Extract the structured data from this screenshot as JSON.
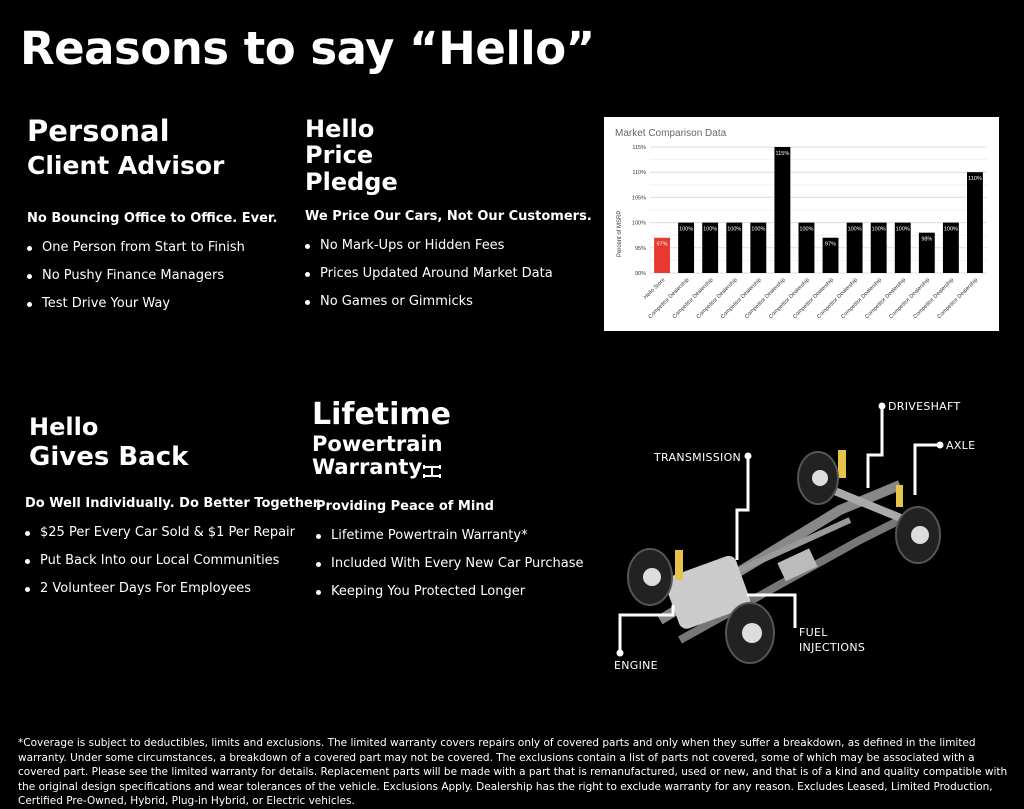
{
  "title": "Reasons to say “Hello”",
  "sections": [
    {
      "heading": [
        "Personal",
        "Client Advisor"
      ],
      "subheading": "No Bouncing Office to Office. Ever.",
      "bullets": [
        "One Person from Start to Finish",
        "No Pushy Finance Managers",
        "Test Drive Your Way"
      ]
    },
    {
      "heading": [
        "Hello",
        "Price",
        "Pledge"
      ],
      "subheading": "We Price Our Cars, Not Our Customers.",
      "bullets": [
        "No Mark-Ups or Hidden Fees",
        "Prices Updated Around Market Data",
        "No Games or Gimmicks"
      ]
    },
    {
      "heading": [
        "Hello",
        "Gives Back"
      ],
      "subheading": "Do Well Individually. Do Better Together.",
      "bullets": [
        "$25 Per Every Car Sold & $1 Per Repair",
        "Put Back Into our Local Communities",
        "2 Volunteer Days For Employees"
      ]
    },
    {
      "heading": [
        "Lifetime",
        "Powertrain",
        "Warranty"
      ],
      "subheading": "Providing Peace of Mind",
      "bullets": [
        "Lifetime Powertrain Warranty*",
        "Included With Every New Car Purchase",
        "Keeping You Protected Longer"
      ]
    }
  ],
  "diagram_labels": {
    "driveshaft": "DRIVESHAFT",
    "axle": "AXLE",
    "transmission": "TRANSMISSION",
    "fuel": "FUEL",
    "injections": "INJECTIONS",
    "engine": "ENGINE"
  },
  "footnote": "*Coverage is subject to deductibles, limits and exclusions. The limited warranty covers repairs only of covered parts and only when they suffer a breakdown, as defined in the limited warranty. Under some circumstances, a breakdown of a covered part may not be covered. The exclusions contain a list of parts not covered, some of which may be associated with a covered part. Please see the limited warranty for details. Replacement parts will be made with a part that is remanufactured, used or new, and that is of a kind and quality compatible with the original design specifications and wear tolerances of the vehicle. Exclusions Apply. Dealership has the right to exclude warranty for any reason. Excludes Leased, Limited Production, Certified Pre-Owned, Hybrid, Plug-in Hybrid, or Electric vehicles.",
  "chart_data": {
    "type": "bar",
    "title": "Market Comparison Data",
    "ylabel": "Percent of MSRP",
    "xlabel": "",
    "ylim": [
      90,
      115
    ],
    "yticks": [
      "90%",
      "95%",
      "100%",
      "105%",
      "110%",
      "115%"
    ],
    "grid": true,
    "categories": [
      "Hello Store",
      "Competitor Dealership",
      "Competitor Dealership",
      "Competitor Dealership",
      "Competitor Dealership",
      "Competitor Dealership",
      "Competitor Dealership",
      "Competitor Dealership",
      "Competitor Dealership",
      "Competitor Dealership",
      "Competitor Dealership",
      "Competitor Dealership",
      "Competitor Dealership",
      "Competitor Dealership"
    ],
    "values": [
      97,
      100,
      100,
      100,
      100,
      115,
      100,
      97,
      100,
      100,
      100,
      98,
      100,
      110
    ],
    "colors": {
      "highlight": "#e8392f",
      "default": "#000000"
    }
  }
}
